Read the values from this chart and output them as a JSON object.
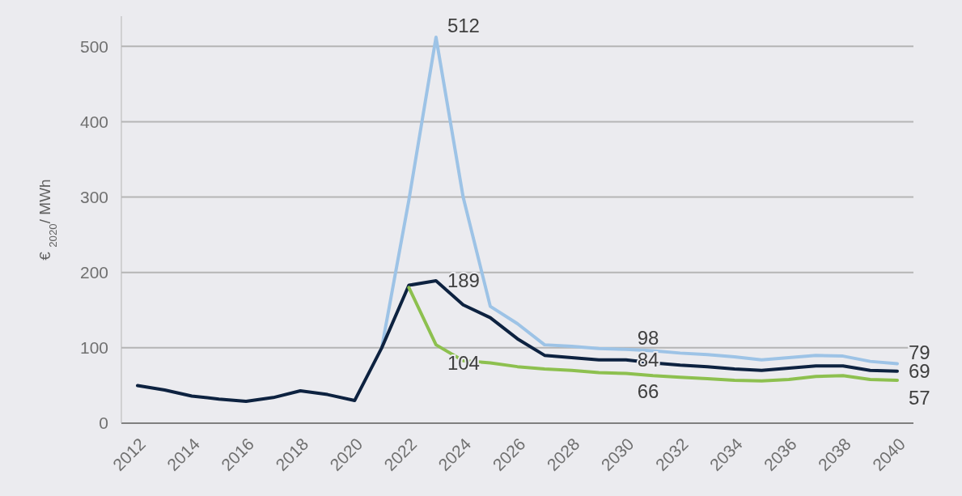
{
  "chart_data": {
    "type": "line",
    "ylabel": "€ $_{2020}$/ MWh",
    "categories": [
      "2012",
      null,
      "2014",
      null,
      "2016",
      null,
      "2018",
      null,
      "2020",
      null,
      "2022",
      null,
      "2024",
      null,
      "2026",
      null,
      "2028",
      null,
      "2030",
      null,
      "2032",
      null,
      "2034",
      null,
      "2036",
      null,
      "2038",
      null,
      "2040"
    ],
    "series": [
      {
        "color": "#9dc3e6",
        "values": [
          null,
          null,
          null,
          null,
          null,
          null,
          null,
          null,
          null,
          100,
          296,
          512,
          300,
          155,
          132,
          104,
          102,
          99,
          98,
          96,
          93,
          91,
          88,
          84,
          87,
          90,
          89,
          82,
          79
        ],
        "value_labels": [
          null,
          null,
          null,
          null,
          null,
          null,
          null,
          null,
          null,
          null,
          null,
          "512",
          null,
          null,
          null,
          null,
          null,
          null,
          "98",
          null,
          null,
          null,
          null,
          null,
          null,
          null,
          null,
          null,
          "79"
        ]
      },
      {
        "color": "#0d2240",
        "values": [
          50,
          44,
          36,
          32,
          29,
          34,
          43,
          38,
          30,
          100,
          183,
          189,
          157,
          140,
          112,
          90,
          87,
          84,
          84,
          80,
          77,
          75,
          72,
          70,
          73,
          76,
          76,
          70,
          69
        ],
        "value_labels": [
          null,
          null,
          null,
          null,
          null,
          null,
          null,
          null,
          null,
          null,
          null,
          "189",
          null,
          null,
          null,
          null,
          null,
          null,
          "84",
          null,
          null,
          null,
          null,
          null,
          null,
          null,
          null,
          null,
          "69"
        ]
      },
      {
        "color": "#8dc04f",
        "values": [
          null,
          null,
          null,
          null,
          null,
          null,
          null,
          null,
          null,
          null,
          180,
          104,
          83,
          80,
          75,
          72,
          70,
          67,
          66,
          63,
          61,
          59,
          57,
          56,
          58,
          62,
          63,
          58,
          57
        ],
        "value_labels": [
          null,
          null,
          null,
          null,
          null,
          null,
          null,
          null,
          null,
          null,
          null,
          "104",
          null,
          null,
          null,
          null,
          null,
          null,
          "66",
          null,
          null,
          null,
          null,
          null,
          null,
          null,
          null,
          null,
          "57"
        ]
      }
    ],
    "ylim": [
      0,
      540
    ],
    "yticks": [
      0,
      100,
      200,
      300,
      400,
      500
    ],
    "grid": "y",
    "line_style": "solid",
    "marker": "none"
  }
}
